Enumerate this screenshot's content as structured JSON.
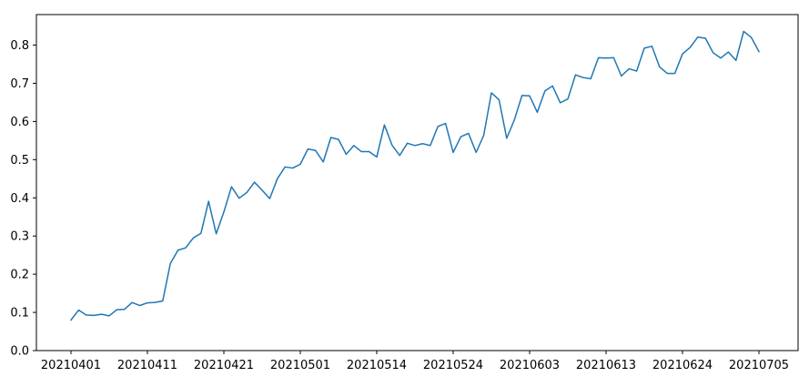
{
  "chart_data": {
    "type": "line",
    "title": "",
    "xlabel": "",
    "ylabel": "",
    "ylim": [
      0.0,
      0.88
    ],
    "y_ticks": [
      "0.0",
      "0.1",
      "0.2",
      "0.3",
      "0.4",
      "0.5",
      "0.6",
      "0.7",
      "0.8"
    ],
    "x_tick_labels": [
      {
        "index": 0,
        "label": "20210401"
      },
      {
        "index": 10,
        "label": "20210411"
      },
      {
        "index": 20,
        "label": "20210421"
      },
      {
        "index": 30,
        "label": "20210501"
      },
      {
        "index": 40,
        "label": "20210514"
      },
      {
        "index": 50,
        "label": "20210524"
      },
      {
        "index": 60,
        "label": "20210603"
      },
      {
        "index": 70,
        "label": "20210613"
      },
      {
        "index": 80,
        "label": "20210624"
      },
      {
        "index": 90,
        "label": "20210705"
      }
    ],
    "grid": false,
    "legend": "none",
    "colors": {
      "line": "#1f77b4",
      "axes": "#000000"
    },
    "series": [
      {
        "values": [
          0.08,
          0.106,
          0.093,
          0.092,
          0.095,
          0.091,
          0.107,
          0.108,
          0.126,
          0.118,
          0.125,
          0.126,
          0.13,
          0.228,
          0.263,
          0.269,
          0.295,
          0.307,
          0.391,
          0.306,
          0.363,
          0.429,
          0.399,
          0.414,
          0.441,
          0.42,
          0.398,
          0.45,
          0.481,
          0.478,
          0.488,
          0.528,
          0.524,
          0.494,
          0.558,
          0.553,
          0.514,
          0.537,
          0.521,
          0.521,
          0.507,
          0.591,
          0.538,
          0.511,
          0.543,
          0.537,
          0.542,
          0.537,
          0.587,
          0.595,
          0.519,
          0.56,
          0.569,
          0.519,
          0.564,
          0.675,
          0.657,
          0.556,
          0.604,
          0.668,
          0.667,
          0.624,
          0.68,
          0.693,
          0.649,
          0.659,
          0.722,
          0.715,
          0.712,
          0.767,
          0.766,
          0.767,
          0.719,
          0.738,
          0.732,
          0.792,
          0.797,
          0.743,
          0.726,
          0.726,
          0.777,
          0.794,
          0.821,
          0.818,
          0.78,
          0.766,
          0.782,
          0.76,
          0.836,
          0.82,
          0.783
        ]
      }
    ]
  }
}
